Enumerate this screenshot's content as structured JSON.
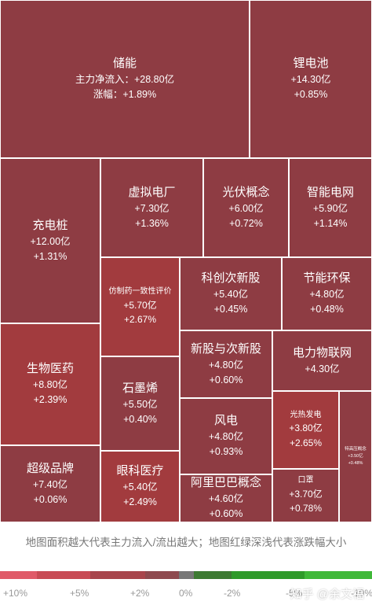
{
  "treemap": {
    "tiles": [
      {
        "name": "储能",
        "lines": [
          "主力净流入：+28.80亿",
          "涨幅：+1.89%"
        ],
        "color": "#8e3c43"
      },
      {
        "name": "锂电池",
        "lines": [
          "+14.30亿",
          "+0.85%"
        ],
        "color": "#8e3c43"
      },
      {
        "name": "充电桩",
        "lines": [
          "+12.00亿",
          "+1.31%"
        ],
        "color": "#8e3c43"
      },
      {
        "name": "虚拟电厂",
        "lines": [
          "+7.30亿",
          "+1.36%"
        ],
        "color": "#8e3c43"
      },
      {
        "name": "光伏概念",
        "lines": [
          "+6.00亿",
          "+0.72%"
        ],
        "color": "#8e3c43"
      },
      {
        "name": "智能电网",
        "lines": [
          "+5.90亿",
          "+1.14%"
        ],
        "color": "#8e3c43"
      },
      {
        "name": "仿制药一致性评价",
        "lines": [
          "+5.70亿",
          "+2.67%"
        ],
        "color": "#a23b3e"
      },
      {
        "name": "科创次新股",
        "lines": [
          "+5.40亿",
          "+0.45%"
        ],
        "color": "#8e3c43"
      },
      {
        "name": "节能环保",
        "lines": [
          "+4.80亿",
          "+0.48%"
        ],
        "color": "#8e3c43"
      },
      {
        "name": "生物医药",
        "lines": [
          "+8.80亿",
          "+2.39%"
        ],
        "color": "#a23b3e"
      },
      {
        "name": "新股与次新股",
        "lines": [
          "+4.80亿",
          "+0.60%"
        ],
        "color": "#8e3c43"
      },
      {
        "name": "电力物联网",
        "lines": [
          "+4.30亿"
        ],
        "color": "#8e3c43"
      },
      {
        "name": "石墨烯",
        "lines": [
          "+5.50亿",
          "+0.40%"
        ],
        "color": "#8e3c43"
      },
      {
        "name": "风电",
        "lines": [
          "+4.80亿",
          "+0.93%"
        ],
        "color": "#8e3c43"
      },
      {
        "name": "光热发电",
        "lines": [
          "+3.80亿",
          "+2.65%"
        ],
        "color": "#a23b3e"
      },
      {
        "name": "超级品牌",
        "lines": [
          "+7.40亿",
          "+0.06%"
        ],
        "color": "#8e3c43"
      },
      {
        "name": "眼科医疗",
        "lines": [
          "+5.40亿",
          "+2.49%"
        ],
        "color": "#a23b3e"
      },
      {
        "name": "阿里巴巴概念",
        "lines": [
          "+4.60亿",
          "+0.60%"
        ],
        "color": "#8e3c43"
      },
      {
        "name": "口罩",
        "lines": [
          "+3.70亿",
          "+0.78%"
        ],
        "color": "#8e3c43"
      },
      {
        "name": "特高压概念",
        "lines": [
          "+3.50亿",
          "+0.48%"
        ],
        "color": "#8e3c43"
      }
    ]
  },
  "caption": "地图面积越大代表主力流入/流出越大；地图红绿深浅代表涨跌幅大小",
  "legend": {
    "colors": [
      "#e05a68",
      "#c84b54",
      "#a8454c",
      "#8e4a4f",
      "#777777",
      "#3d7a32",
      "#2f9a2a",
      "#3fb838"
    ],
    "labels": [
      "+10%",
      "+5%",
      "+2%",
      "0%",
      "-2%",
      "-5%",
      "-10%"
    ]
  },
  "watermark": "知乎 @余文福"
}
